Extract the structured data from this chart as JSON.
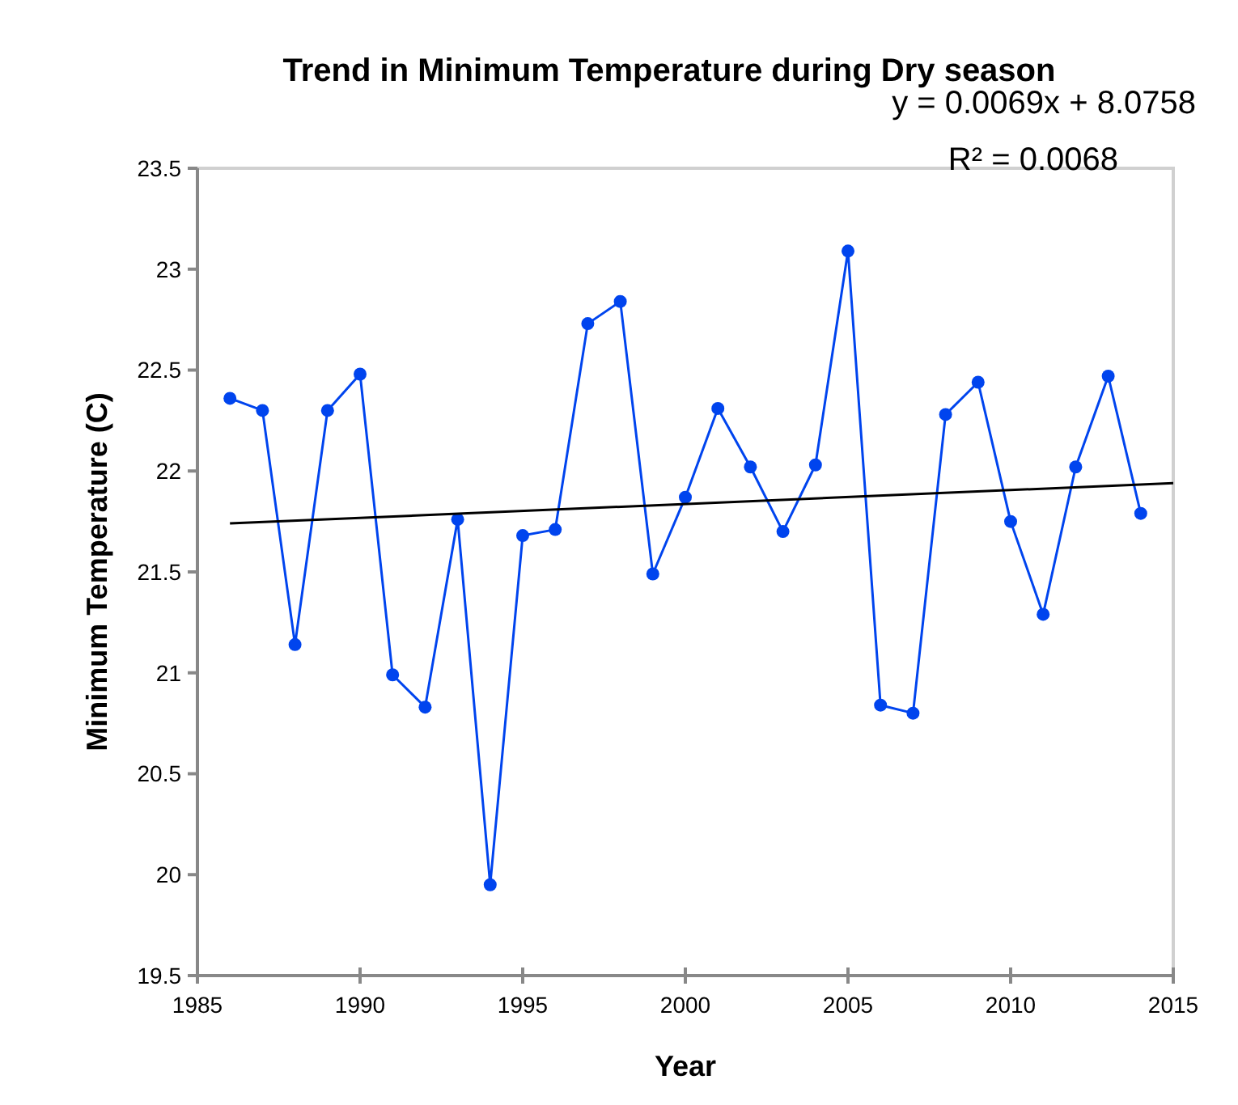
{
  "chart_data": {
    "type": "line",
    "title": "Trend in Minimum Temperature during Dry season",
    "xlabel": "Year",
    "ylabel": "Minimum Temperature (C)",
    "annotations": [
      "y = 0.0069x + 8.0758",
      "R² = 0.0068"
    ],
    "x": [
      1986,
      1987,
      1988,
      1989,
      1990,
      1991,
      1992,
      1993,
      1994,
      1995,
      1996,
      1997,
      1998,
      1999,
      2000,
      2001,
      2002,
      2003,
      2004,
      2005,
      2006,
      2007,
      2008,
      2009,
      2010,
      2011,
      2012,
      2013,
      2014
    ],
    "series": [
      {
        "color": "#0044ee",
        "marker": "circle",
        "values": [
          22.36,
          22.3,
          21.14,
          22.3,
          22.48,
          20.99,
          20.83,
          21.76,
          19.95,
          21.68,
          21.71,
          22.73,
          22.84,
          21.49,
          21.87,
          22.31,
          22.02,
          21.7,
          22.03,
          23.09,
          20.84,
          20.8,
          22.28,
          22.44,
          21.75,
          21.29,
          22.02,
          22.47,
          21.79
        ]
      },
      {
        "type": "line",
        "color": "#000000",
        "marker": "none",
        "x": [
          1986,
          2015
        ],
        "values": [
          21.74,
          21.94
        ]
      }
    ],
    "xlim": [
      1985,
      2015
    ],
    "xticks": [
      1985,
      1990,
      1995,
      2000,
      2005,
      2010,
      2015
    ],
    "ylim": [
      19.5,
      23.5
    ],
    "yticks": [
      19.5,
      20,
      20.5,
      21,
      21.5,
      22,
      22.5,
      23,
      23.5
    ],
    "grid": false,
    "line_style": "solid"
  }
}
